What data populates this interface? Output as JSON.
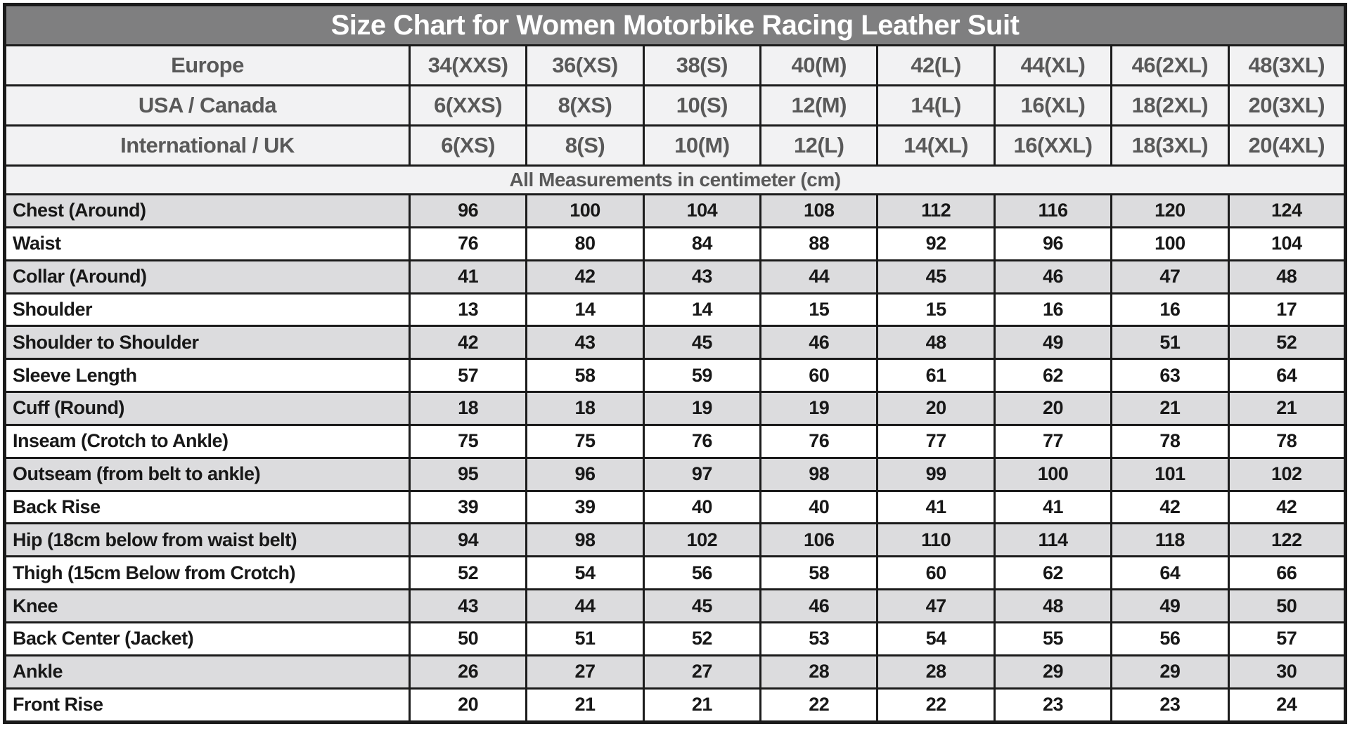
{
  "chart_data": {
    "type": "table",
    "title": "Size Chart for Women Motorbike Racing Leather Suit",
    "units_note": "All Measurements in centimeter (cm)",
    "size_systems": [
      {
        "label": "Europe",
        "values": [
          "34(XXS)",
          "36(XS)",
          "38(S)",
          "40(M)",
          "42(L)",
          "44(XL)",
          "46(2XL)",
          "48(3XL)"
        ]
      },
      {
        "label": "USA / Canada",
        "values": [
          "6(XXS)",
          "8(XS)",
          "10(S)",
          "12(M)",
          "14(L)",
          "16(XL)",
          "18(2XL)",
          "20(3XL)"
        ]
      },
      {
        "label": "International / UK",
        "values": [
          "6(XS)",
          "8(S)",
          "10(M)",
          "12(L)",
          "14(XL)",
          "16(XXL)",
          "18(3XL)",
          "20(4XL)"
        ]
      }
    ],
    "measurements": [
      {
        "label": "Chest (Around)",
        "values": [
          96,
          100,
          104,
          108,
          112,
          116,
          120,
          124
        ]
      },
      {
        "label": "Waist",
        "values": [
          76,
          80,
          84,
          88,
          92,
          96,
          100,
          104
        ]
      },
      {
        "label": "Collar (Around)",
        "values": [
          41,
          42,
          43,
          44,
          45,
          46,
          47,
          48
        ]
      },
      {
        "label": "Shoulder",
        "values": [
          13,
          14,
          14,
          15,
          15,
          16,
          16,
          17
        ]
      },
      {
        "label": "Shoulder to Shoulder",
        "values": [
          42,
          43,
          45,
          46,
          48,
          49,
          51,
          52
        ]
      },
      {
        "label": "Sleeve Length",
        "values": [
          57,
          58,
          59,
          60,
          61,
          62,
          63,
          64
        ]
      },
      {
        "label": "Cuff (Round)",
        "values": [
          18,
          18,
          19,
          19,
          20,
          20,
          21,
          21
        ]
      },
      {
        "label": "Inseam (Crotch to Ankle)",
        "values": [
          75,
          75,
          76,
          76,
          77,
          77,
          78,
          78
        ]
      },
      {
        "label": "Outseam (from belt to ankle)",
        "values": [
          95,
          96,
          97,
          98,
          99,
          100,
          101,
          102
        ]
      },
      {
        "label": "Back Rise",
        "values": [
          39,
          39,
          40,
          40,
          41,
          41,
          42,
          42
        ]
      },
      {
        "label": "Hip (18cm below from waist belt)",
        "values": [
          94,
          98,
          102,
          106,
          110,
          114,
          118,
          122
        ]
      },
      {
        "label": "Thigh (15cm Below from Crotch)",
        "values": [
          52,
          54,
          56,
          58,
          60,
          62,
          64,
          66
        ]
      },
      {
        "label": "Knee",
        "values": [
          43,
          44,
          45,
          46,
          47,
          48,
          49,
          50
        ]
      },
      {
        "label": "Back Center (Jacket)",
        "values": [
          50,
          51,
          52,
          53,
          54,
          55,
          56,
          57
        ]
      },
      {
        "label": "Ankle",
        "values": [
          26,
          27,
          27,
          28,
          28,
          29,
          29,
          30
        ]
      },
      {
        "label": "Front Rise",
        "values": [
          20,
          21,
          21,
          22,
          22,
          23,
          23,
          24
        ]
      }
    ]
  },
  "colors": {
    "title-bg": "#7f7f80",
    "title-text": "#ffffff",
    "header-bg": "#f2f2f3",
    "header-text": "#595959",
    "stripe-bg": "#dcdcde",
    "body-text": "#181818",
    "border-color": "#1b1b1b"
  }
}
